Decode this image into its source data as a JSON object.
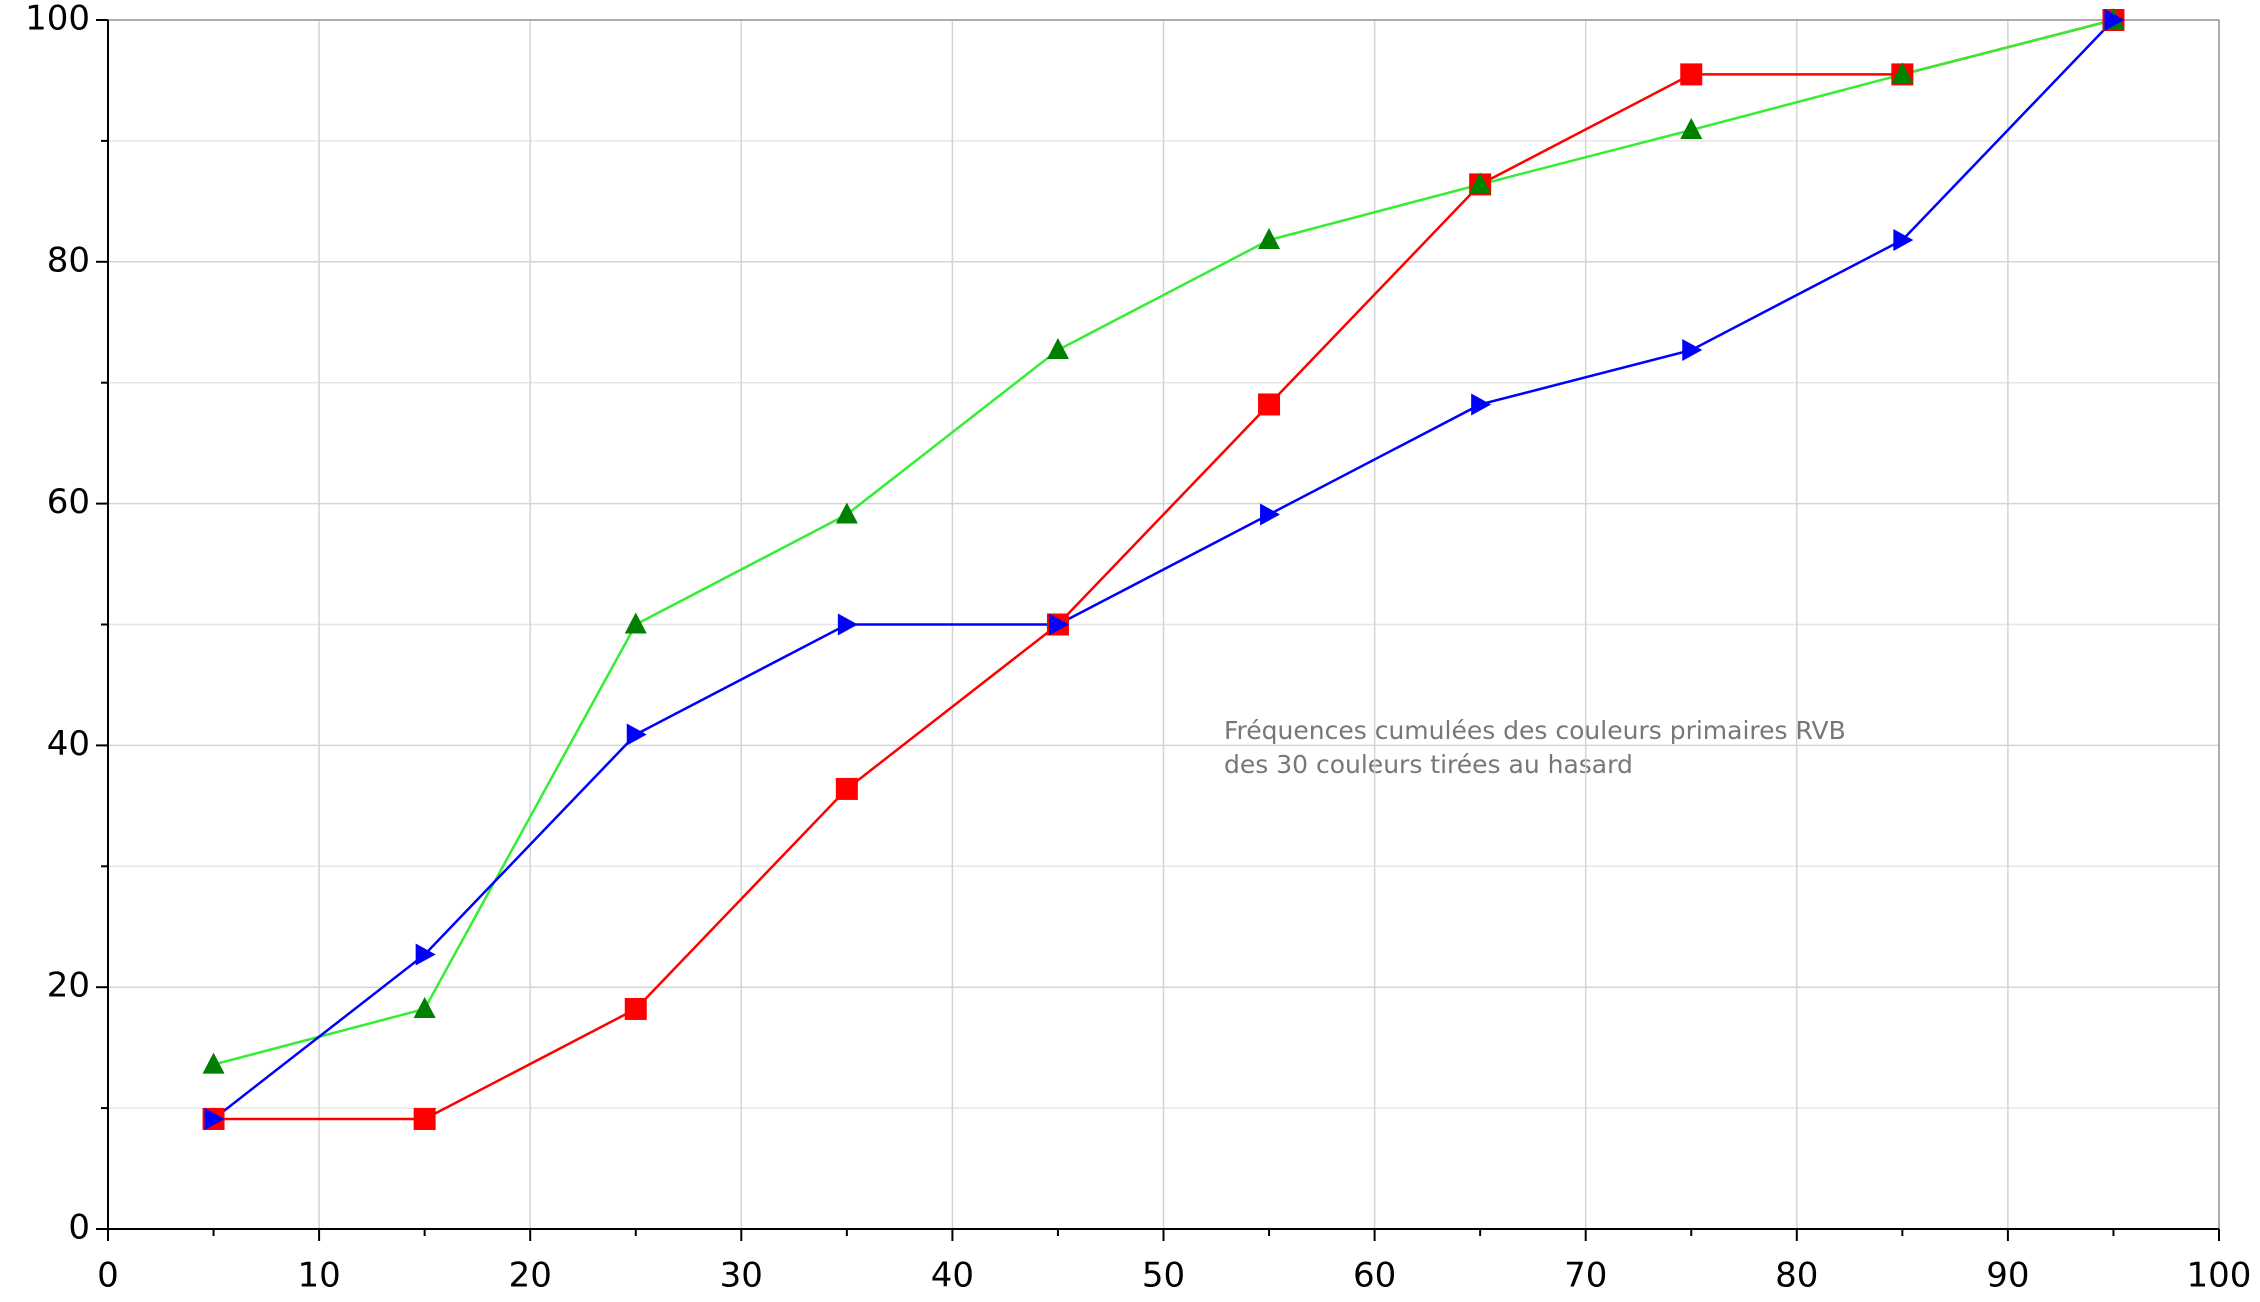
{
  "chart_data": {
    "type": "line",
    "annotation": [
      "Fréquences cumulées des couleurs primaires RVB",
      "des 30 couleurs tirées au hasard"
    ],
    "x": [
      5,
      15,
      25,
      35,
      45,
      55,
      65,
      75,
      85,
      95
    ],
    "series": [
      {
        "color": "#ff0000",
        "marker_color": "#ff0000",
        "marker": "square",
        "values": [
          9.1,
          9.1,
          18.2,
          36.4,
          50,
          68.2,
          86.4,
          95.5,
          95.5,
          100
        ]
      },
      {
        "color": "#33ee33",
        "marker_color": "#008000",
        "marker": "triangle-up",
        "values": [
          13.6,
          18.2,
          50,
          59.1,
          72.7,
          81.8,
          86.4,
          90.9,
          95.5,
          100
        ]
      },
      {
        "color": "#0000ff",
        "marker_color": "#0000ff",
        "marker": "triangle-right",
        "values": [
          9.1,
          22.7,
          40.9,
          50,
          50,
          59.1,
          68.2,
          72.7,
          81.8,
          100
        ]
      }
    ],
    "xlim": [
      0,
      100
    ],
    "ylim": [
      0,
      100
    ],
    "xticks": [
      0,
      10,
      20,
      30,
      40,
      50,
      60,
      70,
      80,
      90,
      100
    ],
    "yticks": [
      0,
      20,
      40,
      60,
      80,
      100
    ],
    "x_minor_ticks": [
      5,
      15,
      25,
      35,
      45,
      55,
      65,
      75,
      85,
      95
    ],
    "y_minor_ticks": [
      10,
      30,
      50,
      70,
      90
    ],
    "grid": true
  }
}
